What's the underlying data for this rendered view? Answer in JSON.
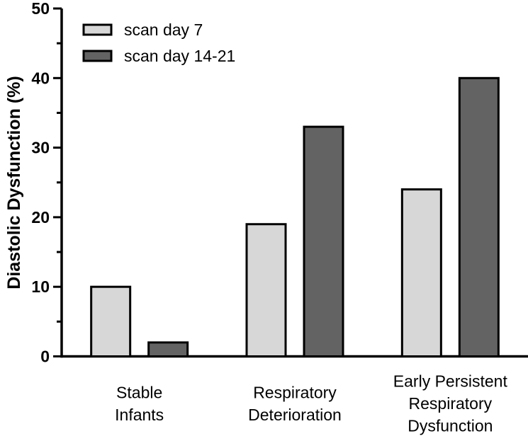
{
  "figure": {
    "background_color": "#ffffff",
    "axis_color": "#000000",
    "bar_outline_color": "#000000"
  },
  "chart_data": {
    "type": "bar",
    "title": "",
    "xlabel": "",
    "ylabel": "Diastolic Dysfunction (%)",
    "ylim": [
      0,
      50
    ],
    "yticks_major": [
      0,
      10,
      20,
      30,
      40,
      50
    ],
    "yticks_minor": [
      5,
      15,
      25,
      35,
      45
    ],
    "grid": false,
    "legend_position": "top-left-inside",
    "categories": [
      "Stable Infants",
      "Respiratory Deterioration",
      "Early Persistent Respiratory Dysfunction"
    ],
    "category_lines": [
      [
        "Stable",
        "Infants"
      ],
      [
        "Respiratory",
        "Deterioration"
      ],
      [
        "Early Persistent",
        "Respiratory",
        "Dysfunction"
      ]
    ],
    "series": [
      {
        "name": "scan day 7",
        "color": "#d7d7d7",
        "values": [
          10,
          19,
          24
        ]
      },
      {
        "name": "scan day 14-21",
        "color": "#636363",
        "values": [
          2,
          33,
          40
        ]
      }
    ]
  }
}
